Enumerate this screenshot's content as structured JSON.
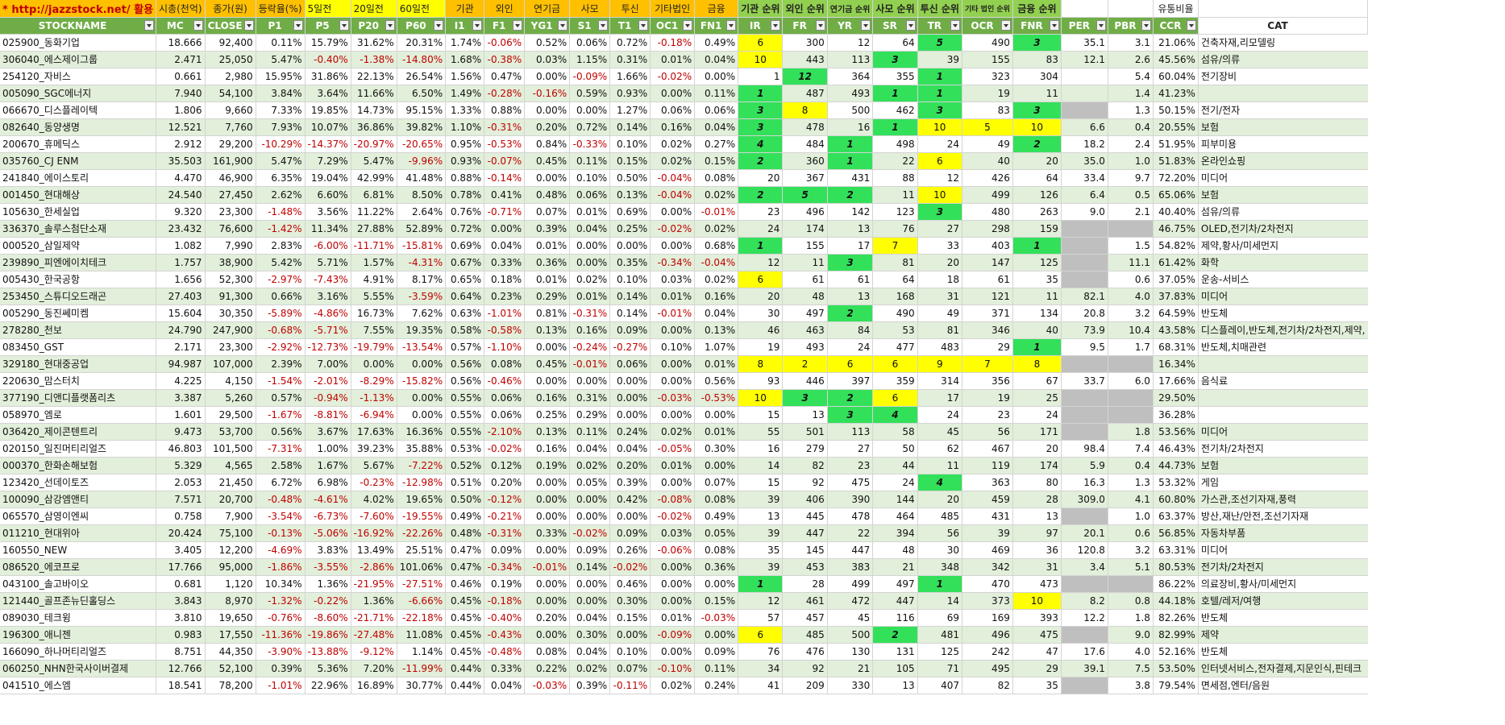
{
  "header_top": {
    "url": "* http://jazzstock.net/ 활용",
    "mc": "시총(천억)",
    "close": "종가(원)",
    "p1": "등락율(%)",
    "p5": "5일전",
    "p20": "20일전",
    "p60": "60일전",
    "i1": "기관",
    "f1": "외인",
    "yg1": "연기금",
    "s1": "사모",
    "t1": "투신",
    "oc1": "기타법인",
    "fn1": "금융",
    "ir": "기관 순위",
    "fr": "외인 순위",
    "yr": "연기금 순위",
    "sr": "사모 순위",
    "tr": "투신 순위",
    "ocr": "기타 법인 순위",
    "fnr": "금융 순위",
    "per": "",
    "pbr": "",
    "ccr": "유통비율",
    "cat": ""
  },
  "columns": [
    "STOCKNAME",
    "MC",
    "CLOSE",
    "P1",
    "P5",
    "P20",
    "P60",
    "I1",
    "F1",
    "YG1",
    "S1",
    "T1",
    "OC1",
    "FN1",
    "IR",
    "FR",
    "YR",
    "SR",
    "TR",
    "OCR",
    "FNR",
    "PER",
    "PBR",
    "CCR",
    "CAT"
  ],
  "colors": {
    "header_orange": "#ffc000",
    "header_green": "#70ad47",
    "highlight_yellow": "#ffff00",
    "highlight_green": "#33e05a",
    "negative_red": "#c00000",
    "row_alt": "#e2efda"
  },
  "rows": [
    [
      "025900_동화기업",
      "18.666",
      "92,400",
      "0.11%",
      "15.79%",
      "31.62%",
      "20.31%",
      "1.74%",
      "-0.06%",
      "0.52%",
      "0.06%",
      "0.72%",
      "-0.18%",
      "0.49%",
      "6",
      "300",
      "12",
      "64",
      "5",
      "490",
      "3",
      "35.1",
      "3.1",
      "21.06%",
      "건축자재,리모델링"
    ],
    [
      "306040_에스제이그룹",
      "2.471",
      "25,050",
      "5.47%",
      "-0.40%",
      "-1.38%",
      "-14.80%",
      "1.68%",
      "-0.38%",
      "0.03%",
      "1.15%",
      "0.31%",
      "0.01%",
      "0.04%",
      "10",
      "443",
      "113",
      "3",
      "39",
      "155",
      "83",
      "12.1",
      "2.6",
      "45.56%",
      "섬유/의류"
    ],
    [
      "254120_자비스",
      "0.661",
      "2,980",
      "15.95%",
      "31.86%",
      "22.13%",
      "26.54%",
      "1.56%",
      "0.47%",
      "0.00%",
      "-0.09%",
      "1.66%",
      "-0.02%",
      "0.00%",
      "1",
      "12",
      "364",
      "355",
      "1",
      "323",
      "304",
      "",
      "5.4",
      "60.04%",
      "전기장비"
    ],
    [
      "005090_SGC에너지",
      "7.940",
      "54,100",
      "3.84%",
      "3.64%",
      "11.66%",
      "6.50%",
      "1.49%",
      "-0.28%",
      "-0.16%",
      "0.59%",
      "0.93%",
      "0.00%",
      "0.11%",
      "1",
      "487",
      "493",
      "1",
      "1",
      "19",
      "11",
      "",
      "1.4",
      "41.23%",
      ""
    ],
    [
      "066670_디스플레이텍",
      "1.806",
      "9,660",
      "7.33%",
      "19.85%",
      "14.73%",
      "95.15%",
      "1.33%",
      "0.88%",
      "0.00%",
      "0.00%",
      "1.27%",
      "0.06%",
      "0.06%",
      "3",
      "8",
      "500",
      "462",
      "3",
      "83",
      "3",
      "",
      "1.3",
      "50.15%",
      "전기/전자"
    ],
    [
      "082640_동양생명",
      "12.521",
      "7,760",
      "7.93%",
      "10.07%",
      "36.86%",
      "39.82%",
      "1.10%",
      "-0.31%",
      "0.20%",
      "0.72%",
      "0.14%",
      "0.16%",
      "0.04%",
      "3",
      "478",
      "16",
      "1",
      "10",
      "5",
      "10",
      "6.6",
      "0.4",
      "20.55%",
      "보험"
    ],
    [
      "200670_휴메딕스",
      "2.912",
      "29,200",
      "-10.29%",
      "-14.37%",
      "-20.97%",
      "-20.65%",
      "0.95%",
      "-0.53%",
      "0.84%",
      "-0.33%",
      "0.10%",
      "0.02%",
      "0.27%",
      "4",
      "484",
      "1",
      "498",
      "24",
      "49",
      "2",
      "18.2",
      "2.4",
      "51.95%",
      "피부미용"
    ],
    [
      "035760_CJ ENM",
      "35.503",
      "161,900",
      "5.47%",
      "7.29%",
      "5.47%",
      "-9.96%",
      "0.93%",
      "-0.07%",
      "0.45%",
      "0.11%",
      "0.15%",
      "0.02%",
      "0.15%",
      "2",
      "360",
      "1",
      "22",
      "6",
      "40",
      "20",
      "35.0",
      "1.0",
      "51.83%",
      "온라인쇼핑"
    ],
    [
      "241840_에이스토리",
      "4.470",
      "46,900",
      "6.35%",
      "19.04%",
      "42.99%",
      "41.48%",
      "0.88%",
      "-0.14%",
      "0.00%",
      "0.10%",
      "0.50%",
      "-0.04%",
      "0.08%",
      "20",
      "367",
      "431",
      "88",
      "12",
      "426",
      "64",
      "33.4",
      "9.7",
      "72.20%",
      "미디어"
    ],
    [
      "001450_현대해상",
      "24.540",
      "27,450",
      "2.62%",
      "6.60%",
      "6.81%",
      "8.50%",
      "0.78%",
      "0.41%",
      "0.48%",
      "0.06%",
      "0.13%",
      "-0.04%",
      "0.02%",
      "2",
      "5",
      "2",
      "11",
      "10",
      "499",
      "126",
      "6.4",
      "0.5",
      "65.06%",
      "보험"
    ],
    [
      "105630_한세실업",
      "9.320",
      "23,300",
      "-1.48%",
      "3.56%",
      "11.22%",
      "2.64%",
      "0.76%",
      "-0.71%",
      "0.07%",
      "0.01%",
      "0.69%",
      "0.00%",
      "-0.01%",
      "23",
      "496",
      "142",
      "123",
      "3",
      "480",
      "263",
      "9.0",
      "2.1",
      "40.40%",
      "섬유/의류"
    ],
    [
      "336370_솔루스첨단소재",
      "23.432",
      "76,600",
      "-1.42%",
      "11.34%",
      "27.88%",
      "52.89%",
      "0.72%",
      "0.00%",
      "0.39%",
      "0.04%",
      "0.25%",
      "-0.02%",
      "0.02%",
      "24",
      "174",
      "13",
      "76",
      "27",
      "298",
      "159",
      "",
      "",
      "46.75%",
      "OLED,전기차/2차전지"
    ],
    [
      "000520_삼일제약",
      "1.082",
      "7,990",
      "2.83%",
      "-6.00%",
      "-11.71%",
      "-15.81%",
      "0.69%",
      "0.04%",
      "0.01%",
      "0.00%",
      "0.00%",
      "0.00%",
      "0.68%",
      "1",
      "155",
      "17",
      "7",
      "33",
      "403",
      "1",
      "",
      "1.5",
      "54.82%",
      "제약,황사/미세먼지"
    ],
    [
      "239890_피엔에이치테크",
      "1.757",
      "38,900",
      "5.42%",
      "5.71%",
      "1.57%",
      "-4.31%",
      "0.67%",
      "0.33%",
      "0.36%",
      "0.00%",
      "0.35%",
      "-0.34%",
      "-0.04%",
      "12",
      "11",
      "3",
      "81",
      "20",
      "147",
      "125",
      "",
      "11.1",
      "61.42%",
      "화학"
    ],
    [
      "005430_한국공항",
      "1.656",
      "52,300",
      "-2.97%",
      "-7.43%",
      "4.91%",
      "8.17%",
      "0.65%",
      "0.18%",
      "0.01%",
      "0.02%",
      "0.10%",
      "0.03%",
      "0.02%",
      "6",
      "61",
      "61",
      "64",
      "18",
      "61",
      "35",
      "",
      "0.6",
      "37.05%",
      "운송-서비스"
    ],
    [
      "253450_스튜디오드래곤",
      "27.403",
      "91,300",
      "0.66%",
      "3.16%",
      "5.55%",
      "-3.59%",
      "0.64%",
      "0.23%",
      "0.29%",
      "0.01%",
      "0.14%",
      "0.01%",
      "0.16%",
      "20",
      "48",
      "13",
      "168",
      "31",
      "121",
      "11",
      "82.1",
      "4.0",
      "37.83%",
      "미디어"
    ],
    [
      "005290_동진쎄미켐",
      "15.604",
      "30,350",
      "-5.89%",
      "-4.86%",
      "16.73%",
      "7.62%",
      "0.63%",
      "-1.01%",
      "0.81%",
      "-0.31%",
      "0.14%",
      "-0.01%",
      "0.04%",
      "30",
      "497",
      "2",
      "490",
      "49",
      "371",
      "134",
      "20.8",
      "3.2",
      "64.59%",
      "반도체"
    ],
    [
      "278280_천보",
      "24.790",
      "247,900",
      "-0.68%",
      "-5.71%",
      "7.55%",
      "19.35%",
      "0.58%",
      "-0.58%",
      "0.13%",
      "0.16%",
      "0.09%",
      "0.00%",
      "0.13%",
      "46",
      "463",
      "84",
      "53",
      "81",
      "346",
      "40",
      "73.9",
      "10.4",
      "43.58%",
      "디스플레이,반도체,전기차/2차전지,제약,"
    ],
    [
      "083450_GST",
      "2.171",
      "23,300",
      "-2.92%",
      "-12.73%",
      "-19.79%",
      "-13.54%",
      "0.57%",
      "-1.10%",
      "0.00%",
      "-0.24%",
      "-0.27%",
      "0.10%",
      "1.07%",
      "19",
      "493",
      "24",
      "477",
      "483",
      "29",
      "1",
      "9.5",
      "1.7",
      "68.31%",
      "반도체,치매관련"
    ],
    [
      "329180_현대중공업",
      "94.987",
      "107,000",
      "2.39%",
      "7.00%",
      "0.00%",
      "0.00%",
      "0.56%",
      "0.08%",
      "0.45%",
      "-0.01%",
      "0.06%",
      "0.00%",
      "0.01%",
      "8",
      "2",
      "6",
      "6",
      "9",
      "7",
      "8",
      "",
      "",
      "16.34%",
      ""
    ],
    [
      "220630_맘스터치",
      "4.225",
      "4,150",
      "-1.54%",
      "-2.01%",
      "-8.29%",
      "-15.82%",
      "0.56%",
      "-0.46%",
      "0.00%",
      "0.00%",
      "0.00%",
      "0.00%",
      "0.56%",
      "93",
      "446",
      "397",
      "359",
      "314",
      "356",
      "67",
      "33.7",
      "6.0",
      "17.66%",
      "음식료"
    ],
    [
      "377190_디앤디플랫폼리츠",
      "3.387",
      "5,260",
      "0.57%",
      "-0.94%",
      "-1.13%",
      "0.00%",
      "0.55%",
      "0.06%",
      "0.16%",
      "0.31%",
      "0.00%",
      "-0.03%",
      "-0.53%",
      "10",
      "3",
      "2",
      "6",
      "17",
      "19",
      "25",
      "",
      "",
      "29.50%",
      ""
    ],
    [
      "058970_엠로",
      "1.601",
      "29,500",
      "-1.67%",
      "-8.81%",
      "-6.94%",
      "0.00%",
      "0.55%",
      "0.06%",
      "0.25%",
      "0.29%",
      "0.00%",
      "0.00%",
      "0.00%",
      "15",
      "13",
      "3",
      "4",
      "24",
      "23",
      "24",
      "",
      "",
      "36.28%",
      ""
    ],
    [
      "036420_제이콘텐트리",
      "9.473",
      "53,700",
      "0.56%",
      "3.67%",
      "17.63%",
      "16.36%",
      "0.55%",
      "-2.10%",
      "0.13%",
      "0.11%",
      "0.24%",
      "0.02%",
      "0.01%",
      "55",
      "501",
      "113",
      "58",
      "45",
      "56",
      "171",
      "",
      "1.8",
      "53.56%",
      "미디어"
    ],
    [
      "020150_일진머티리얼즈",
      "46.803",
      "101,500",
      "-7.31%",
      "1.00%",
      "39.23%",
      "35.88%",
      "0.53%",
      "-0.02%",
      "0.16%",
      "0.04%",
      "0.04%",
      "-0.05%",
      "0.30%",
      "16",
      "279",
      "27",
      "50",
      "62",
      "467",
      "20",
      "98.4",
      "7.4",
      "46.43%",
      "전기차/2차전지"
    ],
    [
      "000370_한화손해보험",
      "5.329",
      "4,565",
      "2.58%",
      "1.67%",
      "5.67%",
      "-7.22%",
      "0.52%",
      "0.12%",
      "0.19%",
      "0.02%",
      "0.20%",
      "0.01%",
      "0.00%",
      "14",
      "82",
      "23",
      "44",
      "11",
      "119",
      "174",
      "5.9",
      "0.4",
      "44.73%",
      "보험"
    ],
    [
      "123420_선데이토즈",
      "2.053",
      "21,450",
      "6.72%",
      "6.98%",
      "-0.23%",
      "-12.98%",
      "0.51%",
      "0.20%",
      "0.00%",
      "0.05%",
      "0.39%",
      "0.00%",
      "0.07%",
      "15",
      "92",
      "475",
      "24",
      "4",
      "363",
      "80",
      "16.3",
      "1.3",
      "53.32%",
      "게임"
    ],
    [
      "100090_삼강엠앤티",
      "7.571",
      "20,700",
      "-0.48%",
      "-4.61%",
      "4.02%",
      "19.65%",
      "0.50%",
      "-0.12%",
      "0.00%",
      "0.00%",
      "0.42%",
      "-0.08%",
      "0.08%",
      "39",
      "406",
      "390",
      "144",
      "20",
      "459",
      "28",
      "309.0",
      "4.1",
      "60.80%",
      "가스관,조선기자재,풍력"
    ],
    [
      "065570_삼영이엔씨",
      "0.758",
      "7,900",
      "-3.54%",
      "-6.73%",
      "-7.60%",
      "-19.55%",
      "0.49%",
      "-0.21%",
      "0.00%",
      "0.00%",
      "0.00%",
      "-0.02%",
      "0.49%",
      "13",
      "445",
      "478",
      "464",
      "485",
      "431",
      "13",
      "",
      "1.0",
      "63.37%",
      "방산,재난/안전,조선기자재"
    ],
    [
      "011210_현대위아",
      "20.424",
      "75,100",
      "-0.13%",
      "-5.06%",
      "-16.92%",
      "-22.26%",
      "0.48%",
      "-0.31%",
      "0.33%",
      "-0.02%",
      "0.09%",
      "0.03%",
      "0.05%",
      "39",
      "447",
      "22",
      "394",
      "56",
      "39",
      "97",
      "20.1",
      "0.6",
      "56.85%",
      "자동차부품"
    ],
    [
      "160550_NEW",
      "3.405",
      "12,200",
      "-4.69%",
      "3.83%",
      "13.49%",
      "25.51%",
      "0.47%",
      "0.09%",
      "0.00%",
      "0.09%",
      "0.26%",
      "-0.06%",
      "0.08%",
      "35",
      "145",
      "447",
      "48",
      "30",
      "469",
      "36",
      "120.8",
      "3.2",
      "63.31%",
      "미디어"
    ],
    [
      "086520_에코프로",
      "17.766",
      "95,000",
      "-1.86%",
      "-3.55%",
      "-2.86%",
      "101.06%",
      "0.47%",
      "-0.34%",
      "-0.01%",
      "0.14%",
      "-0.02%",
      "0.00%",
      "0.36%",
      "39",
      "453",
      "383",
      "21",
      "348",
      "342",
      "31",
      "3.4",
      "5.1",
      "80.53%",
      "전기차/2차전지"
    ],
    [
      "043100_솔고바이오",
      "0.681",
      "1,120",
      "10.34%",
      "1.36%",
      "-21.95%",
      "-27.51%",
      "0.46%",
      "0.19%",
      "0.00%",
      "0.00%",
      "0.46%",
      "0.00%",
      "0.00%",
      "1",
      "28",
      "499",
      "497",
      "1",
      "470",
      "473",
      "",
      "",
      "86.22%",
      "의료장비,황사/미세먼지"
    ],
    [
      "121440_골프존뉴딘홀딩스",
      "3.843",
      "8,970",
      "-1.32%",
      "-0.22%",
      "1.36%",
      "-6.66%",
      "0.45%",
      "-0.18%",
      "0.00%",
      "0.00%",
      "0.30%",
      "0.00%",
      "0.15%",
      "12",
      "461",
      "472",
      "447",
      "14",
      "373",
      "10",
      "8.2",
      "0.8",
      "44.18%",
      "호텔/레저/여행"
    ],
    [
      "089030_테크윙",
      "3.810",
      "19,650",
      "-0.76%",
      "-8.60%",
      "-21.71%",
      "-22.18%",
      "0.45%",
      "-0.40%",
      "0.20%",
      "0.04%",
      "0.15%",
      "0.01%",
      "-0.03%",
      "57",
      "457",
      "45",
      "116",
      "69",
      "169",
      "393",
      "12.2",
      "1.8",
      "82.26%",
      "반도체"
    ],
    [
      "196300_애니젠",
      "0.983",
      "17,550",
      "-11.36%",
      "-19.86%",
      "-27.48%",
      "11.08%",
      "0.45%",
      "-0.43%",
      "0.00%",
      "0.30%",
      "0.00%",
      "-0.09%",
      "0.00%",
      "6",
      "485",
      "500",
      "2",
      "481",
      "496",
      "475",
      "",
      "9.0",
      "82.99%",
      "제약"
    ],
    [
      "166090_하나머티리얼즈",
      "8.751",
      "44,350",
      "-3.90%",
      "-13.88%",
      "-9.12%",
      "1.14%",
      "0.45%",
      "-0.48%",
      "0.08%",
      "0.04%",
      "0.10%",
      "0.00%",
      "0.09%",
      "76",
      "476",
      "130",
      "131",
      "125",
      "242",
      "47",
      "17.6",
      "4.0",
      "52.16%",
      "반도체"
    ],
    [
      "060250_NHN한국사이버결제",
      "12.766",
      "52,100",
      "0.39%",
      "5.36%",
      "7.20%",
      "-11.99%",
      "0.44%",
      "0.33%",
      "0.22%",
      "0.02%",
      "0.07%",
      "-0.10%",
      "0.11%",
      "34",
      "92",
      "21",
      "105",
      "71",
      "495",
      "29",
      "39.1",
      "7.5",
      "53.50%",
      "인터넷서비스,전자결제,지문인식,핀테크"
    ],
    [
      "041510_에스엠",
      "18.541",
      "78,200",
      "-1.01%",
      "22.96%",
      "16.89%",
      "30.77%",
      "0.44%",
      "0.04%",
      "-0.03%",
      "0.39%",
      "-0.11%",
      "0.02%",
      "0.24%",
      "41",
      "209",
      "330",
      "13",
      "407",
      "82",
      "35",
      "",
      "3.8",
      "79.54%",
      "면세점,엔터/음원"
    ]
  ],
  "highlights": [
    [
      "IR:y",
      "TR:g",
      "FNR:g"
    ],
    [
      "IR:y",
      "SR:g"
    ],
    [
      "FR:g",
      "TR:g"
    ],
    [
      "IR:g",
      "SR:g",
      "TR:g"
    ],
    [
      "IR:g",
      "FR:y",
      "TR:g",
      "FNR:g",
      "PER:gray"
    ],
    [
      "IR:g",
      "SR:g",
      "TR:y",
      "OCR:y",
      "FNR:y"
    ],
    [
      "IR:g",
      "YR:g",
      "FNR:g"
    ],
    [
      "IR:g",
      "YR:g",
      "TR:y"
    ],
    [],
    [
      "IR:g",
      "FR:g",
      "YR:g",
      "TR:y"
    ],
    [
      "TR:g"
    ],
    [
      "PER:gray",
      "PBR:gray"
    ],
    [
      "IR:g",
      "SR:y",
      "FNR:g",
      "PER:gray"
    ],
    [
      "YR:g",
      "PER:gray"
    ],
    [
      "IR:y",
      "PER:gray"
    ],
    [],
    [
      "YR:g"
    ],
    [],
    [
      "FNR:g"
    ],
    [
      "IR:y",
      "FR:y",
      "YR:y",
      "SR:y",
      "TR:y",
      "OCR:y",
      "FNR:y",
      "PER:gray",
      "PBR:gray"
    ],
    [],
    [
      "IR:y",
      "FR:g",
      "YR:g",
      "SR:y",
      "PER:gray",
      "PBR:gray"
    ],
    [
      "YR:g",
      "SR:g",
      "PER:gray",
      "PBR:gray"
    ],
    [
      "PER:gray"
    ],
    [],
    [],
    [
      "TR:g"
    ],
    [],
    [
      "PER:gray"
    ],
    [],
    [],
    [],
    [
      "IR:g",
      "TR:g",
      "PER:gray",
      "PBR:gray"
    ],
    [
      "FNR:y"
    ],
    [],
    [
      "IR:y",
      "SR:g",
      "PER:gray"
    ],
    [],
    [],
    [
      "PER:gray"
    ]
  ]
}
